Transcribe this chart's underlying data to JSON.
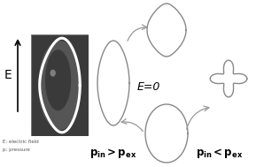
{
  "bg_color": "#ffffff",
  "shape_color": "#888888",
  "arrow_color": "#999999",
  "line_width": 1.0,
  "label_e_field": "E: electric field",
  "label_pressure": "p: pressure",
  "e0_label": "E=0",
  "photo_dark": "#404040",
  "photo_mid": "#606060",
  "photo_light": "#909090"
}
